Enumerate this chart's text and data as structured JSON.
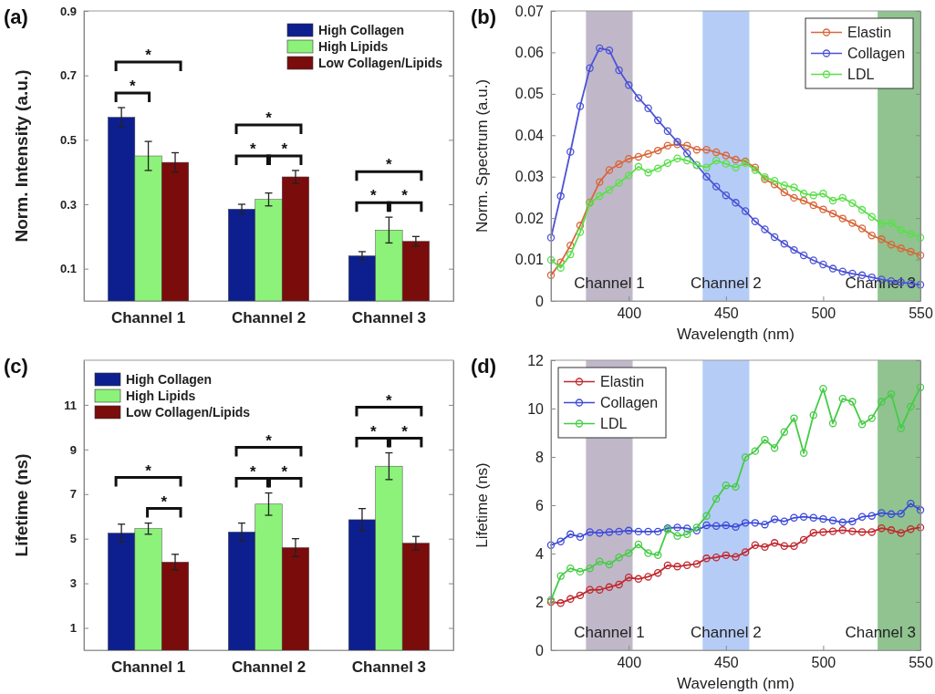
{
  "chart_data": [
    {
      "type": "bar",
      "title": "(a)",
      "ylabel": "Norm. Intensity (a.u.)",
      "categories": [
        "Channel 1",
        "Channel 2",
        "Channel 3"
      ],
      "ylim": [
        0,
        0.9
      ],
      "yticks": [
        0.1,
        0.3,
        0.5,
        0.7,
        0.9
      ],
      "legend": "top right",
      "series": [
        {
          "name": "High Collagen",
          "color": "#0d1f8f",
          "values": [
            0.57,
            0.285,
            0.14
          ],
          "errors": [
            0.03,
            0.015,
            0.013
          ]
        },
        {
          "name": "High Lipids",
          "color": "#8cf27a",
          "values": [
            0.45,
            0.315,
            0.22
          ],
          "errors": [
            0.045,
            0.02,
            0.04
          ]
        },
        {
          "name": "Low Collagen/Lipids",
          "color": "#7a0c0c",
          "values": [
            0.43,
            0.385,
            0.185
          ],
          "errors": [
            0.03,
            0.02,
            0.015
          ]
        }
      ],
      "annotations": [
        "*",
        "*",
        "*",
        "*",
        "*",
        "*",
        "*",
        "*"
      ]
    },
    {
      "type": "line",
      "title": "(b)",
      "xlabel": "Wavelength (nm)",
      "ylabel": "Norm. Spectrum (a.u.)",
      "xlim": [
        360,
        550
      ],
      "xticks": [
        400,
        450,
        500,
        550
      ],
      "ylim": [
        0,
        0.07
      ],
      "yticks": [
        0,
        0.01,
        0.02,
        0.03,
        0.04,
        0.05,
        0.06,
        0.07
      ],
      "legend": "top right",
      "marker": "circle",
      "x": [
        360,
        365,
        370,
        375,
        380,
        385,
        390,
        395,
        400,
        405,
        410,
        415,
        420,
        425,
        430,
        435,
        440,
        445,
        450,
        455,
        460,
        465,
        470,
        475,
        480,
        485,
        490,
        495,
        500,
        505,
        510,
        515,
        520,
        525,
        530,
        535,
        540,
        545,
        550
      ],
      "bands": [
        {
          "axis": "x",
          "from": 378,
          "to": 402,
          "label": "Channel 1",
          "color": "#b5abc0"
        },
        {
          "axis": "x",
          "from": 438,
          "to": 462,
          "label": "Channel 2",
          "color": "#a8c3f5"
        },
        {
          "axis": "x",
          "from": 528,
          "to": 550,
          "label": "Channel 3",
          "color": "#7db87d"
        }
      ],
      "series": [
        {
          "name": "Elastin",
          "color": "#d9663a",
          "values": [
            0.0062,
            0.0093,
            0.0134,
            0.0182,
            0.0238,
            0.0287,
            0.0316,
            0.033,
            0.0343,
            0.0348,
            0.0355,
            0.0363,
            0.0375,
            0.0378,
            0.0375,
            0.0365,
            0.0365,
            0.0359,
            0.0351,
            0.0341,
            0.0337,
            0.0322,
            0.0294,
            0.0281,
            0.0262,
            0.0249,
            0.0242,
            0.0231,
            0.0221,
            0.0211,
            0.0199,
            0.0188,
            0.0175,
            0.0158,
            0.0149,
            0.0136,
            0.0127,
            0.0119,
            0.011
          ]
        },
        {
          "name": "Collagen",
          "color": "#4b52d6",
          "values": [
            0.0153,
            0.0253,
            0.036,
            0.047,
            0.0562,
            0.061,
            0.0605,
            0.0557,
            0.0521,
            0.049,
            0.0465,
            0.0436,
            0.041,
            0.0384,
            0.0356,
            0.0328,
            0.03,
            0.0276,
            0.0255,
            0.0237,
            0.0217,
            0.0192,
            0.0173,
            0.0154,
            0.0138,
            0.0123,
            0.011,
            0.0098,
            0.0088,
            0.0078,
            0.0071,
            0.0066,
            0.0062,
            0.0057,
            0.0052,
            0.0048,
            0.0045,
            0.0042,
            0.0039
          ]
        },
        {
          "name": "LDL",
          "color": "#5ae04a",
          "values": [
            0.0099,
            0.008,
            0.0112,
            0.0166,
            0.0236,
            0.0253,
            0.0268,
            0.0285,
            0.0303,
            0.0324,
            0.031,
            0.032,
            0.0333,
            0.0344,
            0.0339,
            0.0328,
            0.0322,
            0.0339,
            0.0331,
            0.0322,
            0.0333,
            0.0316,
            0.0299,
            0.029,
            0.0279,
            0.0274,
            0.0259,
            0.0255,
            0.0259,
            0.0242,
            0.0249,
            0.0236,
            0.022,
            0.0203,
            0.0186,
            0.0188,
            0.0171,
            0.0162,
            0.0153
          ]
        }
      ]
    },
    {
      "type": "bar",
      "title": "(c)",
      "ylabel": "Lifetime (ns)",
      "categories": [
        "Channel 1",
        "Channel 2",
        "Channel 3"
      ],
      "ylim": [
        0,
        13
      ],
      "yticks": [
        1,
        3,
        5,
        7,
        9,
        11
      ],
      "legend": "top left",
      "series": [
        {
          "name": "High Collagen",
          "color": "#0d1f8f",
          "values": [
            5.25,
            5.3,
            5.85
          ],
          "errors": [
            0.4,
            0.4,
            0.5
          ]
        },
        {
          "name": "High Lipids",
          "color": "#8cf27a",
          "values": [
            5.45,
            6.55,
            8.25
          ],
          "errors": [
            0.25,
            0.5,
            0.6
          ]
        },
        {
          "name": "Low Collagen/Lipids",
          "color": "#7a0c0c",
          "values": [
            3.95,
            4.6,
            4.8
          ],
          "errors": [
            0.35,
            0.4,
            0.3
          ]
        }
      ],
      "annotations": [
        "*",
        "*",
        "*",
        "*",
        "*",
        "*",
        "*",
        "*"
      ]
    },
    {
      "type": "line",
      "title": "(d)",
      "xlabel": "Wavelength (nm)",
      "ylabel": "Lifetime (ns)",
      "xlim": [
        360,
        550
      ],
      "xticks": [
        400,
        450,
        500,
        550
      ],
      "ylim": [
        0,
        12
      ],
      "yticks": [
        0,
        2,
        4,
        6,
        8,
        10,
        12
      ],
      "legend": "top left",
      "marker": "circle",
      "x": [
        360,
        365,
        370,
        375,
        380,
        385,
        390,
        395,
        400,
        405,
        410,
        415,
        420,
        425,
        430,
        435,
        440,
        445,
        450,
        455,
        460,
        465,
        470,
        475,
        480,
        485,
        490,
        495,
        500,
        505,
        510,
        515,
        520,
        525,
        530,
        535,
        540,
        545,
        550
      ],
      "bands": [
        {
          "axis": "x",
          "from": 378,
          "to": 402,
          "label": "Channel 1",
          "color": "#b5abc0"
        },
        {
          "axis": "x",
          "from": 438,
          "to": 462,
          "label": "Channel 2",
          "color": "#a8c3f5"
        },
        {
          "axis": "x",
          "from": 528,
          "to": 550,
          "label": "Channel 3",
          "color": "#7db87d"
        }
      ],
      "series": [
        {
          "name": "Elastin",
          "color": "#c0282e",
          "values": [
            2.0,
            1.95,
            2.12,
            2.27,
            2.5,
            2.5,
            2.61,
            2.72,
            3.01,
            2.95,
            3.04,
            3.2,
            3.51,
            3.46,
            3.52,
            3.57,
            3.8,
            3.84,
            3.93,
            3.86,
            4.06,
            4.35,
            4.27,
            4.44,
            4.31,
            4.31,
            4.57,
            4.86,
            4.89,
            4.92,
            4.97,
            4.92,
            4.89,
            4.89,
            5.05,
            4.97,
            4.85,
            5.01,
            5.08
          ]
        },
        {
          "name": "Collagen",
          "color": "#3c4ad8",
          "values": [
            4.35,
            4.5,
            4.8,
            4.69,
            4.89,
            4.85,
            4.89,
            4.91,
            4.95,
            4.91,
            4.91,
            4.91,
            5.05,
            5.08,
            5.04,
            4.95,
            5.17,
            5.14,
            5.17,
            5.1,
            5.27,
            5.27,
            5.2,
            5.42,
            5.33,
            5.48,
            5.52,
            5.48,
            5.43,
            5.37,
            5.29,
            5.33,
            5.52,
            5.56,
            5.68,
            5.63,
            5.65,
            6.07,
            5.8
          ]
        },
        {
          "name": "LDL",
          "color": "#45cc45",
          "values": [
            2.08,
            3.07,
            3.39,
            3.25,
            3.39,
            3.67,
            3.55,
            3.84,
            4.02,
            4.38,
            4.02,
            3.93,
            4.99,
            4.73,
            4.8,
            5.08,
            5.56,
            6.26,
            6.82,
            6.76,
            7.98,
            8.24,
            8.71,
            8.37,
            9.03,
            9.6,
            8.16,
            9.73,
            10.82,
            9.39,
            10.41,
            10.28,
            9.35,
            9.6,
            10.28,
            10.6,
            9.18,
            10.08,
            10.88
          ]
        }
      ]
    }
  ]
}
